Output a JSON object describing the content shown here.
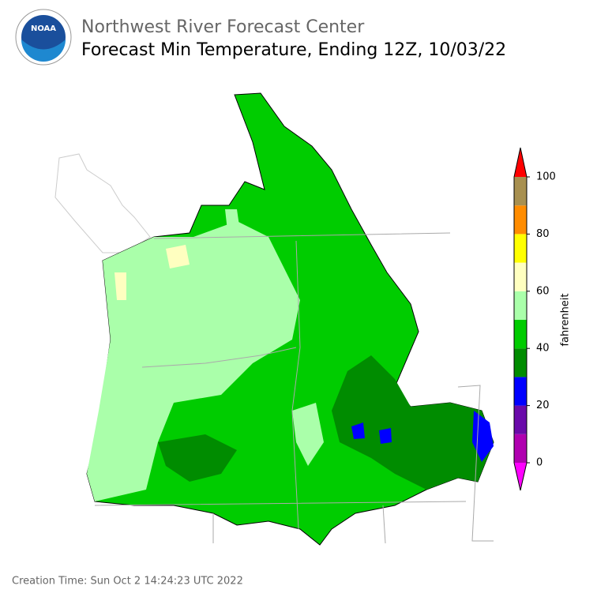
{
  "header": {
    "logo": "NOAA",
    "title": "Northwest River Forecast Center",
    "subtitle": "Forecast Min Temperature, Ending 12Z, 10/03/22"
  },
  "colorbar": {
    "label": "fahrenheit",
    "levels": [
      0,
      10,
      20,
      30,
      40,
      50,
      60,
      70,
      80,
      90,
      100
    ],
    "colors": [
      "#b000b0",
      "#6a0aaa",
      "#0000ff",
      "#008c00",
      "#00cc00",
      "#aaffaa",
      "#ffffc0",
      "#ffff00",
      "#ff8c00",
      "#a89050"
    ],
    "under_color": "#ff00ff",
    "over_color": "#ff0000",
    "ticks": [
      0,
      20,
      40,
      60,
      80,
      100
    ]
  },
  "footer": {
    "creation_time": "Creation Time: Sun Oct 2 14:24:23 UTC 2022"
  }
}
